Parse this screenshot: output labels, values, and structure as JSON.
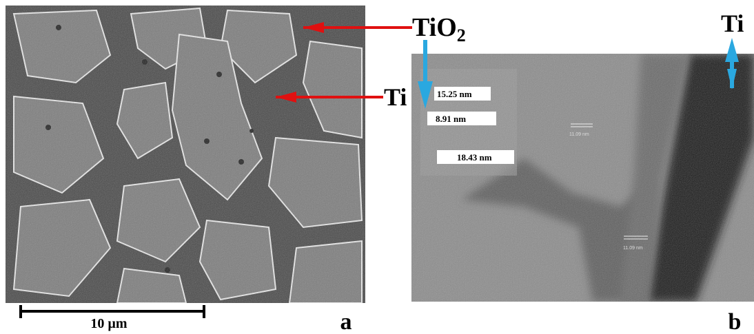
{
  "panel_a": {
    "label_tio2": "TiO",
    "label_tio2_sub": "2",
    "label_ti": "Ti",
    "scale_bar": "10 µm",
    "letter": "a"
  },
  "panel_b": {
    "label_ti": "Ti",
    "measurements": [
      "15.25 nm",
      "8.91 nm",
      "18.43 nm"
    ],
    "faint_measurements": [
      "11.09 nm",
      "11.09 nm"
    ],
    "letter": "b"
  }
}
